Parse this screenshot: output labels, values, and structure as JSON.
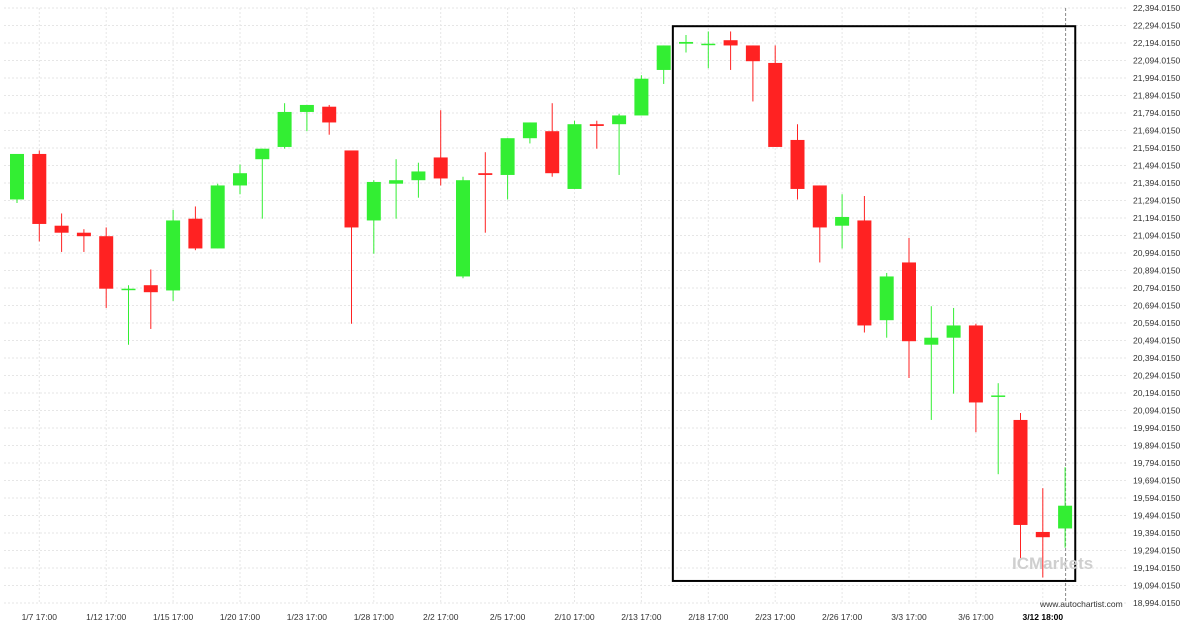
{
  "chart_data": {
    "type": "candlestick",
    "ylim": [
      18994.015,
      22394.015
    ],
    "y_ticks": [
      "22,394.0150",
      "22,294.0150",
      "22,194.0150",
      "22,094.0150",
      "21,994.0150",
      "21,894.0150",
      "21,794.0150",
      "21,694.0150",
      "21,594.0150",
      "21,494.0150",
      "21,394.0150",
      "21,294.0150",
      "21,194.0150",
      "21,094.0150",
      "20,994.0150",
      "20,894.0150",
      "20,794.0150",
      "20,694.0150",
      "20,594.0150",
      "20,494.0150",
      "20,394.0150",
      "20,294.0150",
      "20,194.0150",
      "20,094.0150",
      "19,994.0150",
      "19,894.0150",
      "19,794.0150",
      "19,694.0150",
      "19,594.0150",
      "19,494.0150",
      "19,394.0150",
      "19,294.0150",
      "19,194.0150",
      "19,094.0150",
      "18,994.0150"
    ],
    "x_ticks": [
      {
        "label": "1/7 17:00",
        "index": 1
      },
      {
        "label": "1/12 17:00",
        "index": 4
      },
      {
        "label": "1/15 17:00",
        "index": 7
      },
      {
        "label": "1/20 17:00",
        "index": 10
      },
      {
        "label": "1/23 17:00",
        "index": 13
      },
      {
        "label": "1/28 17:00",
        "index": 16
      },
      {
        "label": "2/2 17:00",
        "index": 19
      },
      {
        "label": "2/5 17:00",
        "index": 22
      },
      {
        "label": "2/10 17:00",
        "index": 25
      },
      {
        "label": "2/13 17:00",
        "index": 28
      },
      {
        "label": "2/18 17:00",
        "index": 31
      },
      {
        "label": "2/23 17:00",
        "index": 34
      },
      {
        "label": "2/26 17:00",
        "index": 37
      },
      {
        "label": "3/3 17:00",
        "index": 40
      },
      {
        "label": "3/6 17:00",
        "index": 43
      },
      {
        "label": "3/12 18:00",
        "index": 46,
        "bold": true
      }
    ],
    "candles": [
      {
        "open": 21300,
        "high": 21560,
        "low": 21280,
        "close": 21560
      },
      {
        "open": 21560,
        "high": 21580,
        "low": 21060,
        "close": 21160
      },
      {
        "open": 21150,
        "high": 21220,
        "low": 21000,
        "close": 21110
      },
      {
        "open": 21110,
        "high": 21130,
        "low": 21000,
        "close": 21090
      },
      {
        "open": 21090,
        "high": 21140,
        "low": 20680,
        "close": 20790
      },
      {
        "open": 20790,
        "high": 20810,
        "low": 20470,
        "close": 20790
      },
      {
        "open": 20810,
        "high": 20900,
        "low": 20560,
        "close": 20770
      },
      {
        "open": 20780,
        "high": 21240,
        "low": 20720,
        "close": 21180
      },
      {
        "open": 21190,
        "high": 21260,
        "low": 21010,
        "close": 21020
      },
      {
        "open": 21020,
        "high": 21390,
        "low": 21020,
        "close": 21380
      },
      {
        "open": 21380,
        "high": 21500,
        "low": 21330,
        "close": 21450
      },
      {
        "open": 21530,
        "high": 21590,
        "low": 21190,
        "close": 21590
      },
      {
        "open": 21600,
        "high": 21850,
        "low": 21590,
        "close": 21800
      },
      {
        "open": 21800,
        "high": 21840,
        "low": 21690,
        "close": 21840
      },
      {
        "open": 21830,
        "high": 21840,
        "low": 21670,
        "close": 21740
      },
      {
        "open": 21580,
        "high": 21580,
        "low": 20590,
        "close": 21140
      },
      {
        "open": 21180,
        "high": 21410,
        "low": 20990,
        "close": 21400
      },
      {
        "open": 21390,
        "high": 21530,
        "low": 21190,
        "close": 21410
      },
      {
        "open": 21410,
        "high": 21510,
        "low": 21310,
        "close": 21460
      },
      {
        "open": 21540,
        "high": 21810,
        "low": 21380,
        "close": 21420
      },
      {
        "open": 20860,
        "high": 21430,
        "low": 20850,
        "close": 21410
      },
      {
        "open": 21450,
        "high": 21570,
        "low": 21110,
        "close": 21440
      },
      {
        "open": 21440,
        "high": 21650,
        "low": 21300,
        "close": 21650
      },
      {
        "open": 21650,
        "high": 21740,
        "low": 21620,
        "close": 21740
      },
      {
        "open": 21690,
        "high": 21850,
        "low": 21430,
        "close": 21450
      },
      {
        "open": 21360,
        "high": 21750,
        "low": 21360,
        "close": 21730
      },
      {
        "open": 21730,
        "high": 21750,
        "low": 21590,
        "close": 21720
      },
      {
        "open": 21730,
        "high": 21790,
        "low": 21440,
        "close": 21780
      },
      {
        "open": 21780,
        "high": 22010,
        "low": 21780,
        "close": 21990
      },
      {
        "open": 22040,
        "high": 22180,
        "low": 21960,
        "close": 22180
      },
      {
        "open": 22190,
        "high": 22240,
        "low": 22140,
        "close": 22200
      },
      {
        "open": 22190,
        "high": 22260,
        "low": 22050,
        "close": 22190
      },
      {
        "open": 22210,
        "high": 22260,
        "low": 22040,
        "close": 22180
      },
      {
        "open": 22180,
        "high": 22180,
        "low": 21860,
        "close": 22090
      },
      {
        "open": 22080,
        "high": 22180,
        "low": 21600,
        "close": 21600
      },
      {
        "open": 21640,
        "high": 21730,
        "low": 21300,
        "close": 21360
      },
      {
        "open": 21380,
        "high": 21380,
        "low": 20940,
        "close": 21140
      },
      {
        "open": 21150,
        "high": 21330,
        "low": 21020,
        "close": 21200
      },
      {
        "open": 21180,
        "high": 21320,
        "low": 20540,
        "close": 20580
      },
      {
        "open": 20610,
        "high": 20880,
        "low": 20510,
        "close": 20860
      },
      {
        "open": 20940,
        "high": 21080,
        "low": 20280,
        "close": 20490
      },
      {
        "open": 20470,
        "high": 20690,
        "low": 20040,
        "close": 20510
      },
      {
        "open": 20510,
        "high": 20680,
        "low": 20190,
        "close": 20580
      },
      {
        "open": 20580,
        "high": 20590,
        "low": 19970,
        "close": 20140
      },
      {
        "open": 20180,
        "high": 20250,
        "low": 19730,
        "close": 20180
      },
      {
        "open": 20040,
        "high": 20080,
        "low": 19250,
        "close": 19440
      },
      {
        "open": 19400,
        "high": 19650,
        "low": 19140,
        "close": 19370
      },
      {
        "open": 19420,
        "high": 19770,
        "low": 19310,
        "close": 19550
      }
    ],
    "pattern_box": {
      "start_index": 30,
      "end_index": 47,
      "top": 22290,
      "bottom": 19120
    },
    "current_line_index": 47,
    "colors": {
      "up": "#33ee33",
      "down": "#ff2222",
      "wick": "#444444",
      "grid": "#e6e6e6",
      "box": "#000000"
    }
  },
  "watermark": "ICMarkets",
  "credit": "www.autochartist.com"
}
